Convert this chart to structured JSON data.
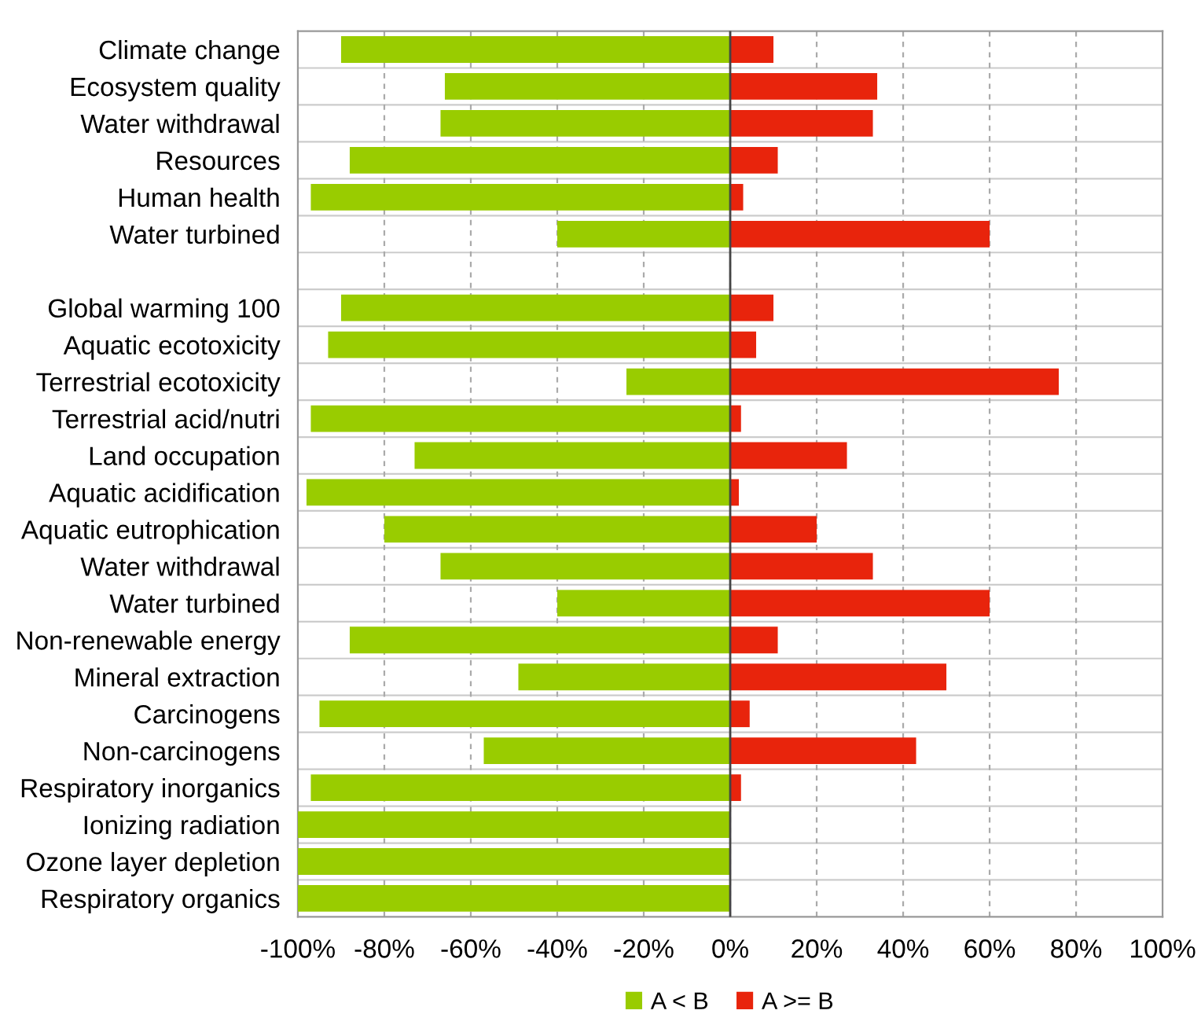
{
  "chart_data": {
    "type": "bar",
    "orientation": "horizontal",
    "categories": [
      "Climate change",
      "Ecosystem quality",
      "Water withdrawal",
      "Resources",
      "Human health",
      "Water turbined",
      null,
      "Global warming 100",
      "Aquatic ecotoxicity",
      "Terrestrial ecotoxicity",
      "Terrestrial acid/nutri",
      "Land occupation",
      "Aquatic acidification",
      "Aquatic eutrophication",
      "Water withdrawal",
      "Water turbined",
      "Non-renewable energy",
      "Mineral extraction",
      "Carcinogens",
      "Non-carcinogens",
      "Respiratory inorganics",
      "Ionizing radiation",
      "Ozone layer depletion",
      "Respiratory organics"
    ],
    "series": [
      {
        "name": "A < B",
        "color": "#99cc00",
        "values": [
          -90,
          -66,
          -67,
          -88,
          -97,
          -40,
          null,
          -90,
          -93,
          -24,
          -97,
          -73,
          -98,
          -80,
          -67,
          -40,
          -88,
          -49,
          -95,
          -57,
          -97,
          -100,
          -100,
          -100
        ]
      },
      {
        "name": "A >= B",
        "color": "#e8240c",
        "values": [
          10,
          34,
          33,
          11,
          3,
          60,
          null,
          10,
          6,
          76,
          2.5,
          27,
          2,
          20,
          33,
          60,
          11,
          50,
          4.5,
          43,
          2.5,
          0,
          0,
          0
        ]
      }
    ],
    "xlim": [
      -100,
      100
    ],
    "xticks": [
      {
        "value": -100,
        "label": "-100%"
      },
      {
        "value": -80,
        "label": "-80%"
      },
      {
        "value": -60,
        "label": "-60%"
      },
      {
        "value": -40,
        "label": "-40%"
      },
      {
        "value": -20,
        "label": "-20%"
      },
      {
        "value": 0,
        "label": "0%"
      },
      {
        "value": 20,
        "label": "20%"
      },
      {
        "value": 40,
        "label": "40%"
      },
      {
        "value": 60,
        "label": "60%"
      },
      {
        "value": 80,
        "label": "80%"
      },
      {
        "value": 100,
        "label": "100%"
      }
    ],
    "stacked": true,
    "grid": "x",
    "legend": "bottom"
  }
}
